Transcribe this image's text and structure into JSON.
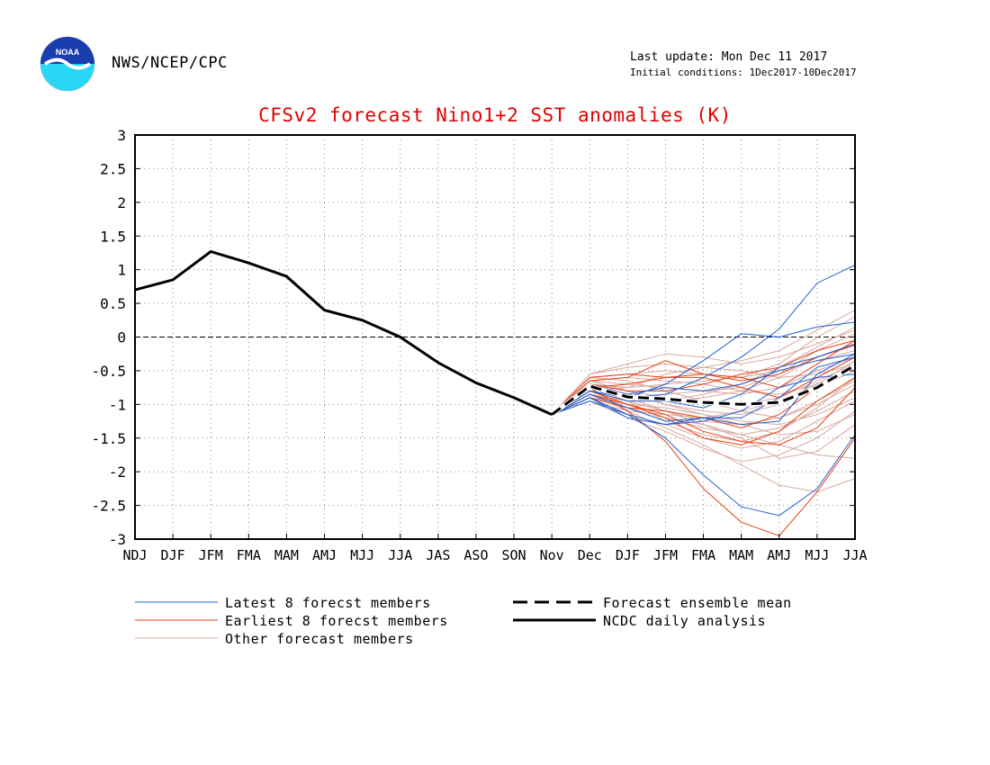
{
  "header": {
    "org": "NWS/NCEP/CPC",
    "last_update": "Last update: Mon Dec 11 2017",
    "initial_conditions": "Initial conditions: 1Dec2017-10Dec2017",
    "logo_text": "NOAA"
  },
  "colors": {
    "latest": "#2060d0",
    "earliest": "#e84010",
    "other": "#d8a8a0",
    "title": "#e00000",
    "grid": "#888888"
  },
  "chart_data": {
    "type": "line",
    "title": "CFSv2 forecast Nino1+2 SST anomalies (K)",
    "categories": [
      "NDJ",
      "DJF",
      "JFM",
      "FMA",
      "MAM",
      "AMJ",
      "MJJ",
      "JJA",
      "JAS",
      "ASO",
      "SON",
      "Nov",
      "Dec",
      "DJF",
      "JFM",
      "FMA",
      "MAM",
      "AMJ",
      "MJJ",
      "JJA"
    ],
    "ylim": [
      -3,
      3
    ],
    "yticks": [
      "3",
      "2.5",
      "2",
      "1.5",
      "1",
      "0.5",
      "0",
      "-0.5",
      "-1",
      "-1.5",
      "-2",
      "-2.5",
      "-3"
    ],
    "grid": true,
    "legend_position": "bottom",
    "legend": {
      "latest": "Latest 8 forecst members",
      "earliest": "Earliest 8 forecst members",
      "other": "Other forecast members",
      "mean": "Forecast ensemble mean",
      "analysis": "NCDC daily analysis"
    },
    "analysis": {
      "name": "NCDC daily analysis",
      "values": [
        0.7,
        0.85,
        1.27,
        1.1,
        0.9,
        0.4,
        0.25,
        0.0,
        -0.38,
        -0.68,
        -0.9,
        -1.15
      ]
    },
    "ensemble_mean": {
      "name": "Forecast ensemble mean",
      "values": [
        -1.15,
        -0.73,
        -0.89,
        -0.92,
        -0.97,
        -1.0,
        -0.97,
        -0.75,
        -0.42
      ]
    },
    "latest_members": [
      [
        -1.15,
        -0.75,
        -0.9,
        -0.7,
        -0.35,
        0.05,
        0.0,
        0.15,
        0.22
      ],
      [
        -1.15,
        -0.8,
        -0.9,
        -0.85,
        -0.6,
        -0.3,
        0.12,
        0.8,
        1.07
      ],
      [
        -1.15,
        -0.9,
        -1.15,
        -1.5,
        -2.05,
        -2.52,
        -2.65,
        -2.25,
        -1.45
      ],
      [
        -1.15,
        -0.85,
        -1.05,
        -1.25,
        -1.2,
        -1.3,
        -1.25,
        -0.55,
        -0.25
      ],
      [
        -1.15,
        -0.95,
        -1.15,
        -1.3,
        -1.2,
        -1.2,
        -0.9,
        -0.45,
        -0.3
      ],
      [
        -1.15,
        -0.8,
        -0.95,
        -0.95,
        -1.05,
        -0.85,
        -0.45,
        -0.3,
        -0.1
      ],
      [
        -1.15,
        -0.7,
        -0.85,
        -0.75,
        -0.8,
        -0.7,
        -0.5,
        -0.35,
        -0.25
      ],
      [
        -1.15,
        -0.9,
        -1.2,
        -1.3,
        -1.25,
        -1.1,
        -0.75,
        -0.6,
        -0.55
      ]
    ],
    "earliest_members": [
      [
        -1.15,
        -0.65,
        -0.6,
        -0.35,
        -0.55,
        -0.6,
        -0.75,
        -0.4,
        -0.05
      ],
      [
        -1.15,
        -0.75,
        -1.1,
        -1.55,
        -2.25,
        -2.75,
        -2.95,
        -2.3,
        -1.5
      ],
      [
        -1.15,
        -0.85,
        -1.0,
        -1.15,
        -1.4,
        -1.55,
        -1.6,
        -1.35,
        -0.75
      ],
      [
        -1.15,
        -0.7,
        -0.8,
        -0.8,
        -0.7,
        -0.55,
        -0.45,
        -0.2,
        -0.05
      ],
      [
        -1.15,
        -0.9,
        -1.05,
        -1.1,
        -1.2,
        -1.35,
        -1.15,
        -0.75,
        -0.4
      ],
      [
        -1.15,
        -0.6,
        -0.55,
        -0.6,
        -0.55,
        -0.65,
        -0.55,
        -0.3,
        -0.12
      ],
      [
        -1.15,
        -0.8,
        -1.0,
        -1.2,
        -1.5,
        -1.6,
        -1.4,
        -0.95,
        -0.6
      ],
      [
        -1.15,
        -0.75,
        -0.7,
        -0.6,
        -0.6,
        -0.75,
        -0.9,
        -0.6,
        -0.3
      ]
    ],
    "other_members": [
      [
        -1.15,
        -0.55,
        -0.4,
        -0.25,
        -0.3,
        -0.4,
        -0.3,
        -0.1,
        0.1
      ],
      [
        -1.15,
        -0.6,
        -0.55,
        -0.5,
        -0.55,
        -0.6,
        -0.5,
        -0.35,
        -0.2
      ],
      [
        -1.15,
        -0.65,
        -0.7,
        -0.75,
        -0.8,
        -0.85,
        -0.75,
        -0.5,
        -0.3
      ],
      [
        -1.15,
        -0.7,
        -0.8,
        -0.9,
        -0.95,
        -1.0,
        -0.9,
        -0.65,
        -0.4
      ],
      [
        -1.15,
        -0.75,
        -0.85,
        -1.0,
        -1.1,
        -1.15,
        -1.0,
        -0.75,
        -0.5
      ],
      [
        -1.15,
        -0.8,
        -0.95,
        -1.1,
        -1.25,
        -1.3,
        -1.2,
        -0.95,
        -0.65
      ],
      [
        -1.15,
        -0.85,
        -1.05,
        -1.2,
        -1.35,
        -1.45,
        -1.35,
        -1.1,
        -0.8
      ],
      [
        -1.15,
        -0.9,
        -1.15,
        -1.3,
        -1.5,
        -1.65,
        -1.55,
        -1.25,
        -0.95
      ],
      [
        -1.15,
        -0.95,
        -1.2,
        -1.4,
        -1.65,
        -1.85,
        -1.75,
        -1.5,
        -1.1
      ],
      [
        -1.15,
        -0.7,
        -0.75,
        -0.7,
        -0.65,
        -0.6,
        -0.4,
        0.0,
        0.3
      ],
      [
        -1.15,
        -0.8,
        -0.9,
        -0.85,
        -0.8,
        -0.75,
        -0.55,
        -0.2,
        0.05
      ],
      [
        -1.15,
        -0.65,
        -0.6,
        -0.65,
        -0.7,
        -0.8,
        -0.85,
        -0.7,
        -0.45
      ],
      [
        -1.15,
        -0.9,
        -1.0,
        -1.05,
        -1.15,
        -1.25,
        -1.3,
        -1.15,
        -0.9
      ],
      [
        -1.15,
        -0.75,
        -0.9,
        -1.1,
        -1.3,
        -1.5,
        -1.8,
        -1.7,
        -1.3
      ],
      [
        -1.15,
        -0.85,
        -1.1,
        -1.35,
        -1.6,
        -1.9,
        -2.2,
        -2.3,
        -2.1
      ],
      [
        -1.15,
        -0.6,
        -0.65,
        -0.8,
        -0.95,
        -1.1,
        -1.2,
        -1.0,
        -0.7
      ],
      [
        -1.15,
        -0.7,
        -0.85,
        -0.95,
        -0.9,
        -0.8,
        -0.6,
        -0.3,
        -0.1
      ],
      [
        -1.15,
        -0.8,
        -0.75,
        -0.55,
        -0.45,
        -0.35,
        -0.2,
        0.1,
        0.4
      ],
      [
        -1.15,
        -0.95,
        -1.1,
        -1.15,
        -1.2,
        -1.1,
        -0.95,
        -0.7,
        -0.35
      ],
      [
        -1.15,
        -0.55,
        -0.45,
        -0.4,
        -0.45,
        -0.5,
        -0.6,
        -0.55,
        -0.4
      ],
      [
        -1.15,
        -0.75,
        -0.95,
        -1.25,
        -1.45,
        -1.55,
        -1.4,
        -1.05,
        -0.6
      ],
      [
        -1.15,
        -0.65,
        -0.8,
        -1.0,
        -1.15,
        -1.3,
        -1.45,
        -1.4,
        -1.15
      ],
      [
        -1.15,
        -0.85,
        -0.95,
        -0.95,
        -0.85,
        -0.7,
        -0.45,
        -0.15,
        0.15
      ],
      [
        -1.15,
        -0.9,
        -1.05,
        -1.2,
        -1.3,
        -1.45,
        -1.6,
        -1.75,
        -1.8
      ]
    ]
  }
}
